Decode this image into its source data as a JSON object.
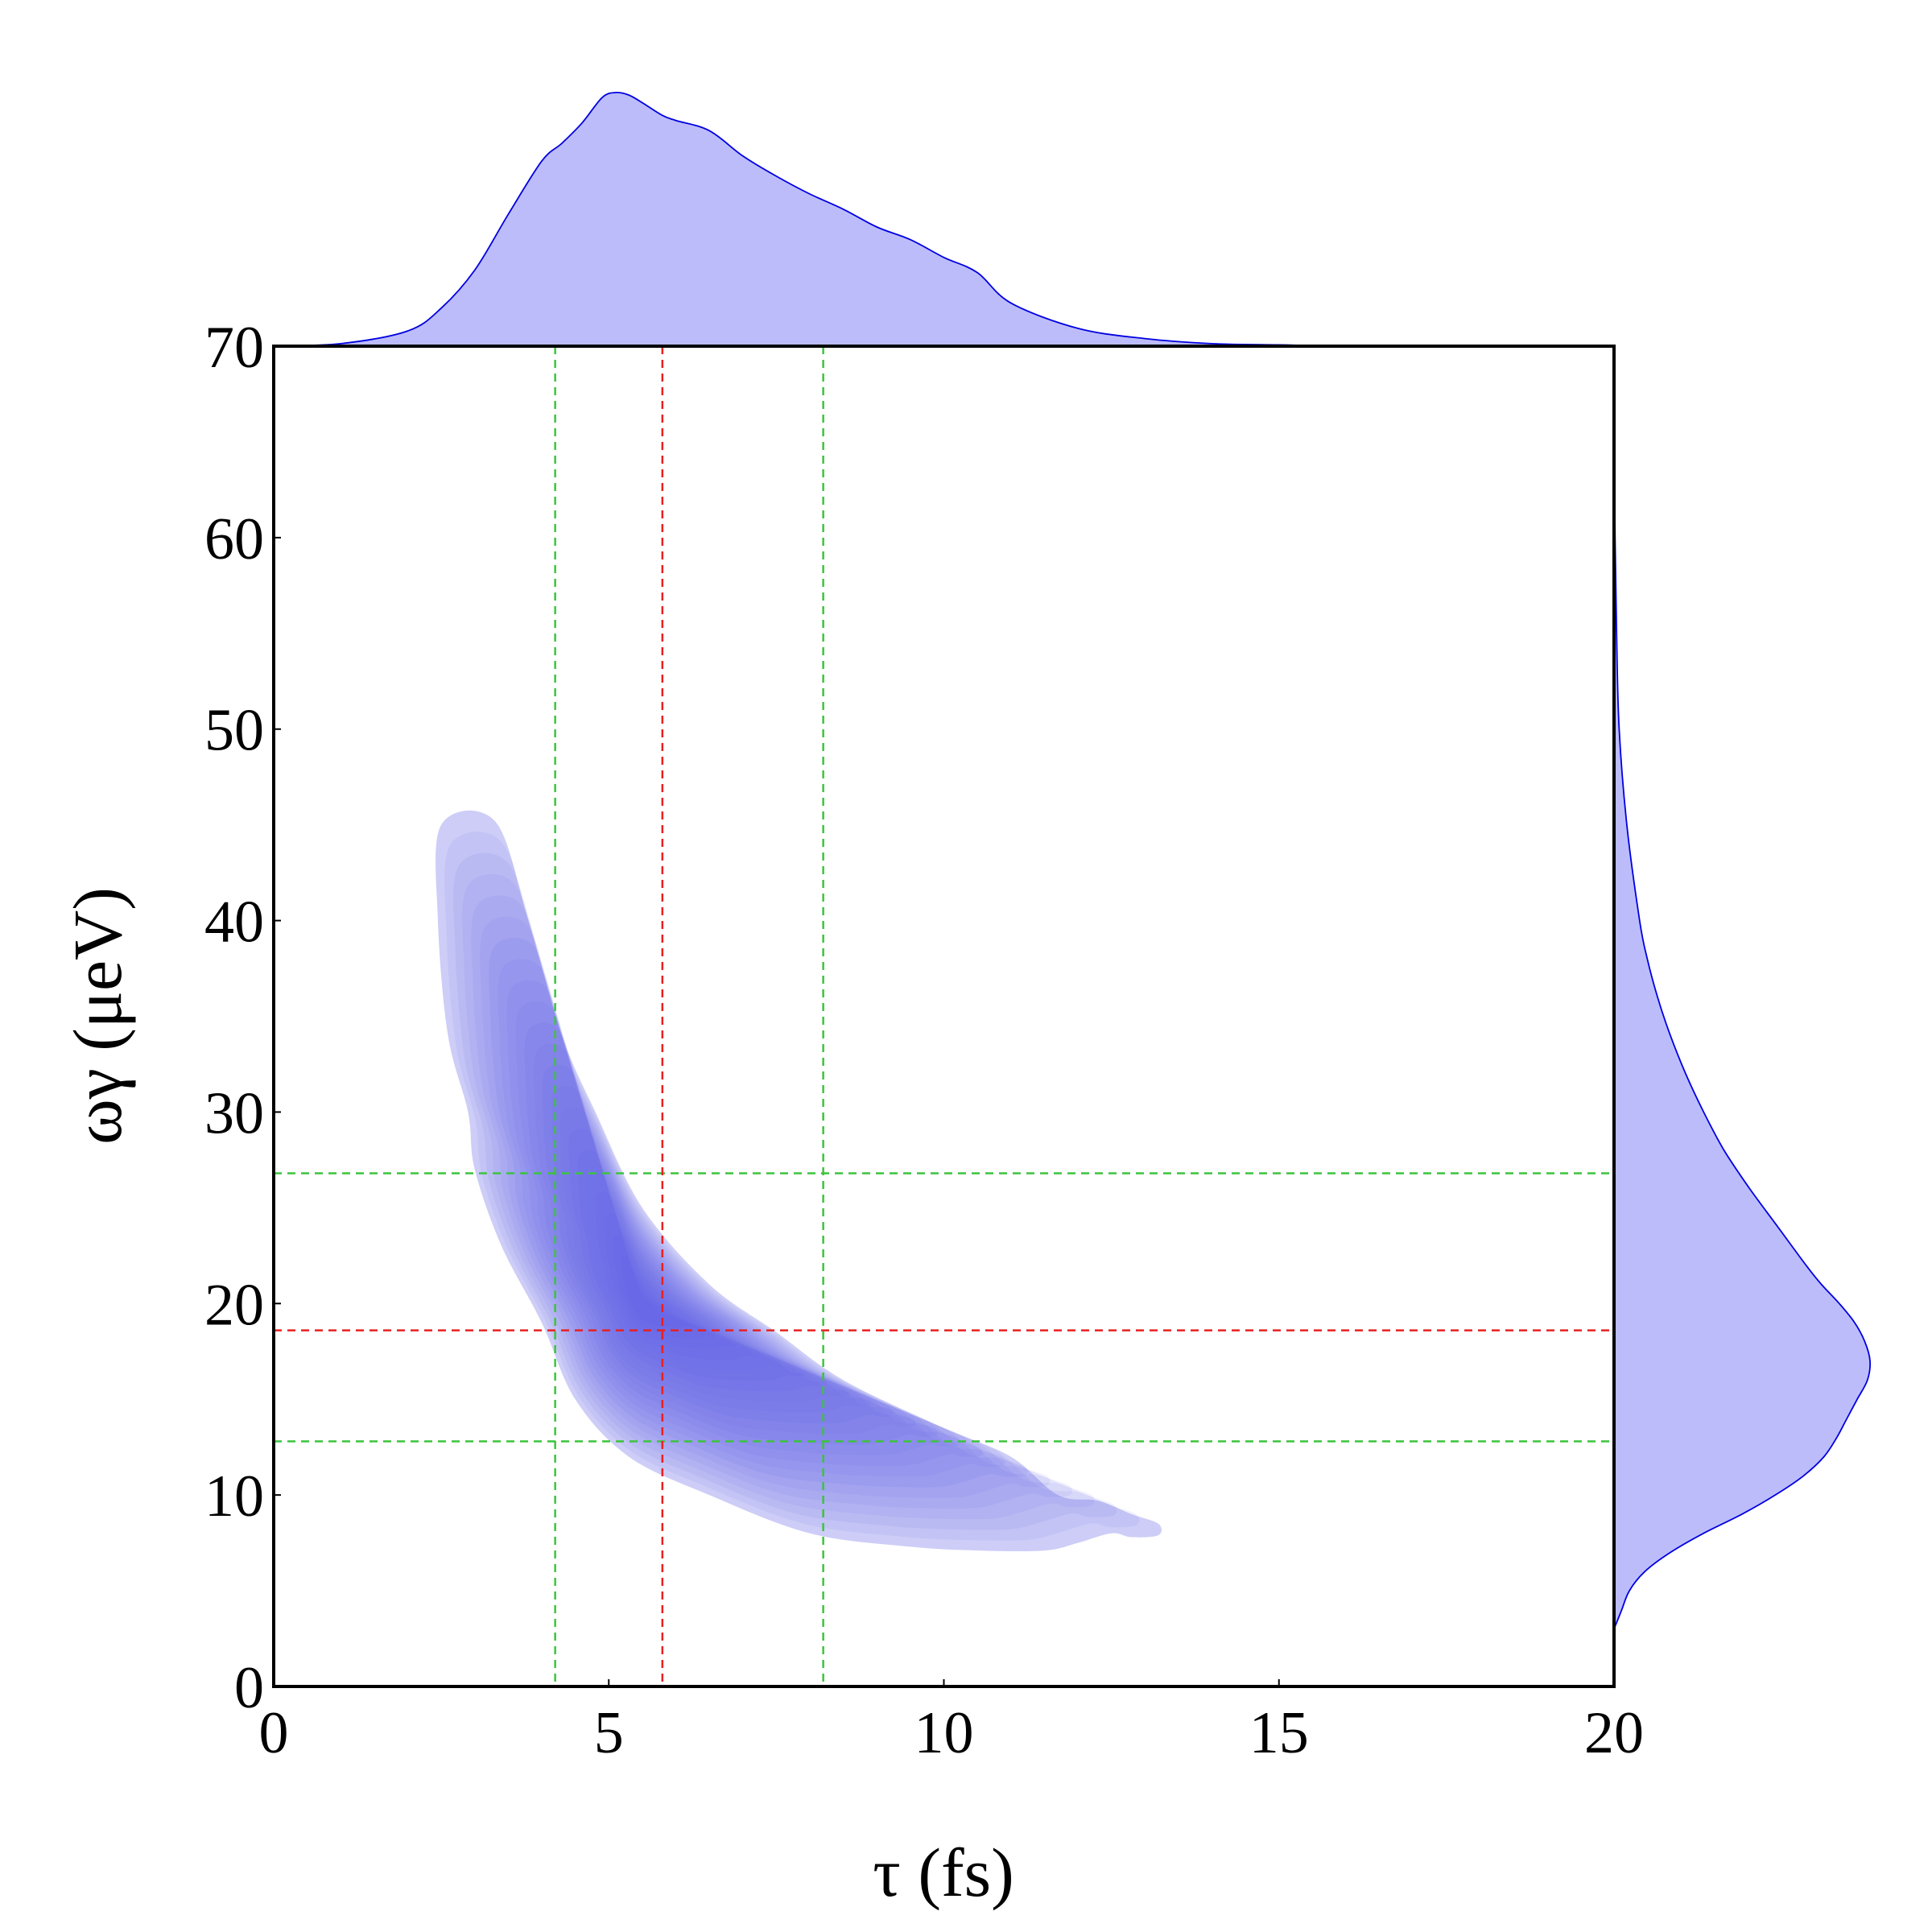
{
  "chart_data": {
    "type": "joint-kde",
    "xlabel": "τ (fs)",
    "ylabel": "ωγ (μeV)",
    "xlim": [
      0,
      20
    ],
    "ylim": [
      0,
      70
    ],
    "x_ticks": [
      "0",
      "5",
      "10",
      "15",
      "20"
    ],
    "y_ticks": [
      "0",
      "10",
      "20",
      "30",
      "40",
      "50",
      "60",
      "70"
    ],
    "grid": false,
    "colors": {
      "density_fill": "#5a5ae6",
      "marginal_fill": "#bcbcfa",
      "marginal_line": "#0000e0",
      "median_line": "#e82020",
      "interval_line": "#3cc43c"
    },
    "joint_density": {
      "shape": "banana-shaped region, density highest near the median and decreasing outward",
      "outer_contour": [
        [
          3.3,
          45.2
        ],
        [
          2.5,
          45.0
        ],
        [
          2.45,
          40.0
        ],
        [
          2.6,
          34.0
        ],
        [
          2.9,
          30.0
        ],
        [
          3.0,
          27.0
        ],
        [
          3.4,
          23.0
        ],
        [
          4.0,
          19.0
        ],
        [
          4.5,
          15.0
        ],
        [
          5.3,
          12.0
        ],
        [
          6.5,
          10.0
        ],
        [
          8.0,
          8.0
        ],
        [
          9.5,
          7.3
        ],
        [
          10.5,
          7.1
        ],
        [
          11.5,
          7.1
        ],
        [
          12.0,
          7.5
        ],
        [
          12.5,
          8.0
        ],
        [
          12.8,
          7.8
        ],
        [
          13.2,
          7.9
        ],
        [
          13.2,
          8.5
        ],
        [
          12.8,
          9.0
        ],
        [
          12.3,
          9.7
        ],
        [
          11.7,
          10.0
        ],
        [
          11.0,
          12.0
        ],
        [
          10.0,
          13.5
        ],
        [
          8.5,
          16.0
        ],
        [
          7.5,
          18.5
        ],
        [
          6.5,
          21.0
        ],
        [
          5.5,
          25.0
        ],
        [
          4.8,
          30.0
        ],
        [
          4.3,
          34.0
        ],
        [
          3.8,
          40.0
        ]
      ],
      "peak": [
        5.5,
        20.0
      ]
    },
    "median": {
      "tau": 5.8,
      "omega_gamma": 18.6
    },
    "interval": {
      "tau": [
        4.2,
        8.2
      ],
      "omega_gamma": [
        12.8,
        26.8
      ]
    },
    "marginal_tau": {
      "x": [
        0,
        1,
        2,
        2.5,
        3,
        3.5,
        4,
        4.3,
        4.6,
        4.9,
        5.1,
        5.3,
        5.5,
        5.8,
        6.0,
        6.5,
        7.0,
        7.5,
        8.0,
        8.5,
        9.0,
        9.5,
        10,
        10.5,
        11,
        12,
        13,
        14,
        15,
        16,
        20
      ],
      "y": [
        0,
        0.01,
        0.06,
        0.15,
        0.3,
        0.52,
        0.73,
        0.8,
        0.88,
        0.98,
        1.0,
        0.99,
        0.96,
        0.91,
        0.89,
        0.85,
        0.75,
        0.67,
        0.6,
        0.54,
        0.47,
        0.42,
        0.35,
        0.29,
        0.17,
        0.07,
        0.03,
        0.01,
        0.005,
        0.002,
        0
      ]
    },
    "marginal_omega_gamma": {
      "y": [
        3,
        4,
        5,
        6,
        7,
        8,
        9,
        10,
        11,
        12,
        13,
        14,
        15,
        16,
        17,
        18,
        19,
        20,
        21,
        22,
        24,
        26,
        28,
        30,
        32,
        34,
        36,
        38,
        40,
        45,
        50,
        55,
        60,
        65,
        70
      ],
      "x": [
        0,
        0.03,
        0.06,
        0.12,
        0.22,
        0.35,
        0.5,
        0.63,
        0.74,
        0.82,
        0.87,
        0.91,
        0.95,
        0.99,
        1.0,
        0.98,
        0.94,
        0.88,
        0.81,
        0.75,
        0.64,
        0.53,
        0.43,
        0.35,
        0.28,
        0.22,
        0.17,
        0.13,
        0.1,
        0.05,
        0.02,
        0.01,
        0.004,
        0.001,
        0
      ]
    }
  }
}
